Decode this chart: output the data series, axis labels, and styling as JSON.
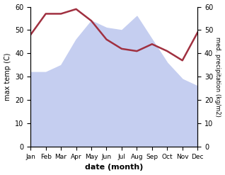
{
  "months": [
    "Jan",
    "Feb",
    "Mar",
    "Apr",
    "May",
    "Jun",
    "Jul",
    "Aug",
    "Sep",
    "Oct",
    "Nov",
    "Dec"
  ],
  "precipitation": [
    32,
    32,
    35,
    46,
    54,
    51,
    50,
    56,
    46,
    36,
    29,
    26
  ],
  "max_temp": [
    48,
    57,
    57,
    59,
    54,
    46,
    42,
    41,
    44,
    41,
    37,
    49
  ],
  "temp_ylim": [
    0,
    60
  ],
  "precip_ylim": [
    0,
    60
  ],
  "fill_color": "#c5cef0",
  "fill_alpha": 1.0,
  "line_color": "#a03040",
  "line_width": 1.8,
  "ylabel_left": "max temp (C)",
  "ylabel_right": "med. precipitation (kg/m2)",
  "xlabel": "date (month)",
  "background_color": "#ffffff",
  "fig_width": 3.18,
  "fig_height": 2.47,
  "dpi": 100
}
